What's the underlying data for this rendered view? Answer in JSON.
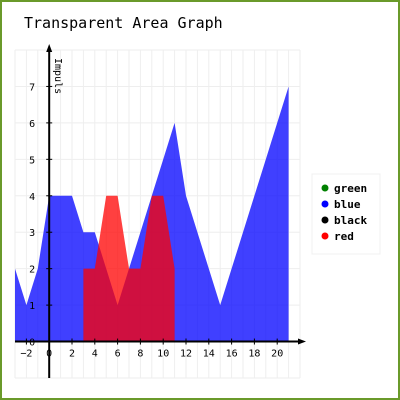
{
  "chart_data": {
    "type": "area",
    "title": "Transparent Area Graph",
    "ylabel": "Impuls",
    "xlabel": "",
    "xlim": [
      -3,
      22
    ],
    "ylim": [
      -1,
      8
    ],
    "x_ticks": [
      -2,
      0,
      2,
      4,
      6,
      8,
      10,
      12,
      14,
      16,
      18,
      20
    ],
    "y_ticks": [
      0,
      1,
      2,
      3,
      4,
      5,
      6,
      7
    ],
    "grid": true,
    "legend_position": "right",
    "legend": [
      {
        "name": "green",
        "color": "#008000"
      },
      {
        "name": "blue",
        "color": "#0000ff"
      },
      {
        "name": "black",
        "color": "#000000"
      },
      {
        "name": "red",
        "color": "#ff0000"
      }
    ],
    "series": [
      {
        "name": "blue",
        "color": "#0000ff",
        "opacity": 0.75,
        "points": [
          [
            -3,
            2
          ],
          [
            -2,
            1
          ],
          [
            -1,
            2
          ],
          [
            0,
            4
          ],
          [
            1,
            4
          ],
          [
            2,
            4
          ],
          [
            3,
            3
          ],
          [
            4,
            3
          ],
          [
            5,
            2
          ],
          [
            6,
            1
          ],
          [
            7,
            2
          ],
          [
            8,
            3
          ],
          [
            9,
            4
          ],
          [
            10,
            5
          ],
          [
            11,
            6
          ],
          [
            12,
            4
          ],
          [
            13,
            3
          ],
          [
            14,
            2
          ],
          [
            15,
            1
          ],
          [
            16,
            2
          ],
          [
            17,
            3
          ],
          [
            18,
            4
          ],
          [
            19,
            5
          ],
          [
            20,
            6
          ],
          [
            21,
            7
          ]
        ]
      },
      {
        "name": "red",
        "color": "#ff0000",
        "opacity": 0.75,
        "points": [
          [
            3,
            2
          ],
          [
            4,
            2
          ],
          [
            5,
            4
          ],
          [
            6,
            4
          ],
          [
            7,
            2
          ],
          [
            8,
            2
          ],
          [
            9,
            4
          ],
          [
            10,
            4
          ],
          [
            11,
            2
          ]
        ]
      }
    ]
  }
}
